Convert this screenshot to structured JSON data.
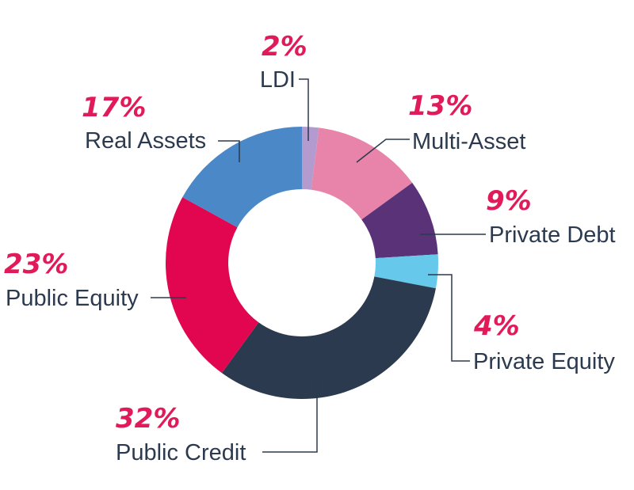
{
  "chart_data": {
    "type": "pie",
    "variant": "donut",
    "categories": [
      "LDI",
      "Multi-Asset",
      "Private Debt",
      "Private Equity",
      "Public Credit",
      "Public Equity",
      "Real Assets"
    ],
    "values": [
      2,
      13,
      9,
      4,
      32,
      23,
      17
    ],
    "labels": [
      "2%",
      "13%",
      "9%",
      "4%",
      "32%",
      "23%",
      "17%"
    ],
    "colors": [
      "#b39bd0",
      "#e884aa",
      "#5a3278",
      "#66c8ea",
      "#2b3a4e",
      "#e1064f",
      "#4a88c8"
    ],
    "label_color": "#e11a5a",
    "text_color": "#2b3a4e",
    "legend": "none"
  }
}
